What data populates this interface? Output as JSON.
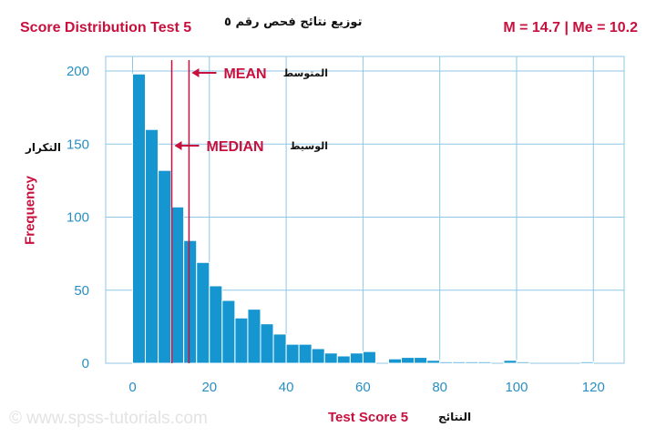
{
  "header": {
    "title_left": "Score Distribution Test 5",
    "title_arabic": "توزيع نتائج فحص رقم ٥",
    "stats": "M = 14.7 | Me = 10.2"
  },
  "watermark": "© www.spss-tutorials.com",
  "colors": {
    "bar": "#1596d0",
    "accent": "#c8103e",
    "grid": "#8fc7e3",
    "axis_text": "#2a8fc0"
  },
  "chart_data": {
    "type": "bar",
    "xlabel": "Test Score 5",
    "xlabel_arabic": "النتائج",
    "ylabel": "Frequency",
    "ylabel_arabic": "التكرار",
    "xlim": [
      -7,
      128
    ],
    "ylim": [
      0,
      210
    ],
    "xticks": [
      0,
      20,
      40,
      60,
      80,
      100,
      120
    ],
    "yticks": [
      0,
      50,
      100,
      150,
      200
    ],
    "bin_width": 3.33,
    "bins": [
      {
        "start": 0.0,
        "value": 198
      },
      {
        "start": 3.33,
        "value": 160
      },
      {
        "start": 6.67,
        "value": 132
      },
      {
        "start": 10.0,
        "value": 107
      },
      {
        "start": 13.33,
        "value": 84
      },
      {
        "start": 16.67,
        "value": 69
      },
      {
        "start": 20.0,
        "value": 53
      },
      {
        "start": 23.33,
        "value": 43
      },
      {
        "start": 26.67,
        "value": 31
      },
      {
        "start": 30.0,
        "value": 37
      },
      {
        "start": 33.33,
        "value": 27
      },
      {
        "start": 36.67,
        "value": 20
      },
      {
        "start": 40.0,
        "value": 13
      },
      {
        "start": 43.33,
        "value": 13
      },
      {
        "start": 46.67,
        "value": 10
      },
      {
        "start": 50.0,
        "value": 7
      },
      {
        "start": 53.33,
        "value": 5
      },
      {
        "start": 56.67,
        "value": 7
      },
      {
        "start": 60.0,
        "value": 8
      },
      {
        "start": 63.33,
        "value": 0
      },
      {
        "start": 66.67,
        "value": 3
      },
      {
        "start": 70.0,
        "value": 4
      },
      {
        "start": 73.33,
        "value": 4
      },
      {
        "start": 76.67,
        "value": 2
      },
      {
        "start": 80.0,
        "value": 1
      },
      {
        "start": 83.33,
        "value": 1
      },
      {
        "start": 86.67,
        "value": 1
      },
      {
        "start": 90.0,
        "value": 1
      },
      {
        "start": 93.33,
        "value": 0
      },
      {
        "start": 96.67,
        "value": 2
      },
      {
        "start": 100.0,
        "value": 1
      },
      {
        "start": 103.33,
        "value": 0
      },
      {
        "start": 106.67,
        "value": 0
      },
      {
        "start": 110.0,
        "value": 0
      },
      {
        "start": 113.33,
        "value": 0
      },
      {
        "start": 116.67,
        "value": 1
      }
    ],
    "reference_lines": [
      {
        "label": "MEAN",
        "label_arabic": "المتوسط",
        "x": 14.7
      },
      {
        "label": "MEDIAN",
        "label_arabic": "الوسيط",
        "x": 10.2
      }
    ]
  }
}
